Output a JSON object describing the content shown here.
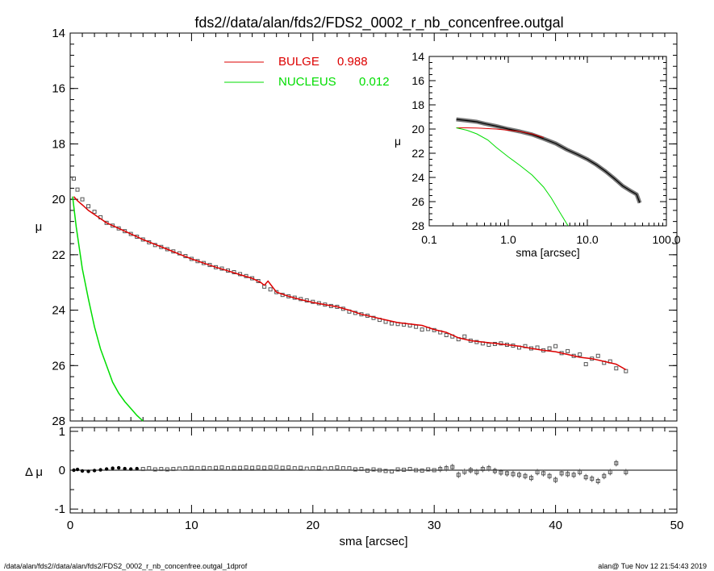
{
  "title": "fds2//data/alan/fds2/FDS2_0002_r_nb_concenfree.outgal",
  "footer_left": "/data/alan/fds2//data/alan/fds2/FDS2_0002_r_nb_concenfree.outgal_1dprof",
  "footer_right": "alan@  Tue Nov 12 21:54:43 2019",
  "colors": {
    "data": "#555555",
    "bulge": "#dd0000",
    "nucleus": "#00dd00",
    "axis": "#000000"
  },
  "chart_data": [
    {
      "type": "scatter",
      "panel": "main",
      "xlabel": "sma [arcsec]",
      "ylabel": "μ",
      "xlim": [
        0,
        50
      ],
      "ylim": [
        28,
        14
      ],
      "x_ticks": [
        "0",
        "10",
        "20",
        "30",
        "40",
        "50"
      ],
      "y_ticks": [
        "14",
        "16",
        "18",
        "20",
        "22",
        "24",
        "26",
        "28"
      ],
      "legend": [
        {
          "label": "BULGE",
          "value": "0.988",
          "color": "#dd0000"
        },
        {
          "label": "NUCLEUS",
          "value": "0.012",
          "color": "#00dd00"
        }
      ],
      "series": [
        {
          "name": "data",
          "style": "squares",
          "x": [
            0.3,
            0.6,
            1.0,
            1.5,
            2.0,
            2.5,
            3.0,
            3.5,
            4.0,
            4.5,
            5.0,
            5.5,
            6.0,
            6.5,
            7.0,
            7.5,
            8.0,
            8.5,
            9.0,
            9.5,
            10.0,
            10.5,
            11.0,
            11.5,
            12.0,
            12.5,
            13.0,
            13.5,
            14.0,
            14.5,
            15.0,
            15.5,
            16.0,
            16.5,
            17.0,
            17.5,
            18.0,
            18.5,
            19.0,
            19.5,
            20.0,
            20.5,
            21.0,
            21.5,
            22.0,
            22.5,
            23.0,
            23.5,
            24.0,
            24.5,
            25.0,
            25.5,
            26.0,
            26.5,
            27.0,
            27.5,
            28.0,
            28.5,
            29.0,
            29.5,
            30.0,
            30.5,
            31.0,
            31.5,
            32.0,
            32.5,
            33.0,
            33.5,
            34.0,
            34.5,
            35.0,
            35.5,
            36.0,
            36.5,
            37.0,
            37.5,
            38.0,
            38.5,
            39.0,
            39.5,
            40.0,
            40.5,
            41.0,
            41.5,
            42.0,
            42.5,
            43.0,
            43.5,
            44.0,
            44.5,
            45.0,
            45.8
          ],
          "y": [
            19.25,
            19.65,
            20.0,
            20.25,
            20.45,
            20.65,
            20.85,
            20.95,
            21.05,
            21.15,
            21.25,
            21.35,
            21.45,
            21.55,
            21.65,
            21.72,
            21.8,
            21.88,
            21.95,
            22.05,
            22.15,
            22.23,
            22.3,
            22.37,
            22.45,
            22.5,
            22.57,
            22.63,
            22.7,
            22.77,
            22.85,
            22.95,
            23.15,
            23.25,
            23.35,
            23.45,
            23.5,
            23.55,
            23.6,
            23.65,
            23.7,
            23.75,
            23.8,
            23.85,
            23.88,
            23.95,
            24.05,
            24.1,
            24.15,
            24.2,
            24.28,
            24.35,
            24.42,
            24.48,
            24.5,
            24.52,
            24.55,
            24.6,
            24.7,
            24.68,
            24.72,
            24.8,
            24.9,
            24.95,
            25.05,
            24.95,
            25.1,
            25.15,
            25.2,
            25.25,
            25.22,
            25.2,
            25.25,
            25.28,
            25.35,
            25.3,
            25.38,
            25.35,
            25.45,
            25.38,
            25.3,
            25.55,
            25.48,
            25.65,
            25.6,
            25.95,
            25.75,
            25.65,
            25.9,
            25.85,
            26.1,
            26.2
          ]
        },
        {
          "name": "BULGE",
          "style": "line",
          "x": [
            0.3,
            0.6,
            1.0,
            1.5,
            2.0,
            3.0,
            4.0,
            5.0,
            6.0,
            7.0,
            8.0,
            9.0,
            10.0,
            11.0,
            12.0,
            13.0,
            14.0,
            15.0,
            15.7,
            16.0,
            16.3,
            17.0,
            18.0,
            19.0,
            20.0,
            21.0,
            22.0,
            23.0,
            24.0,
            25.0,
            26.0,
            27.0,
            28.0,
            29.0,
            30.0,
            31.0,
            32.0,
            33.0,
            34.0,
            35.0,
            36.0,
            37.0,
            38.0,
            39.0,
            40.0,
            41.0,
            42.0,
            43.0,
            44.0,
            45.0,
            45.8
          ],
          "y": [
            19.9,
            20.05,
            20.2,
            20.4,
            20.55,
            20.85,
            21.05,
            21.25,
            21.45,
            21.63,
            21.8,
            21.98,
            22.15,
            22.3,
            22.45,
            22.58,
            22.72,
            22.85,
            23.0,
            23.1,
            22.95,
            23.35,
            23.5,
            23.62,
            23.72,
            23.8,
            23.88,
            24.0,
            24.15,
            24.25,
            24.35,
            24.45,
            24.5,
            24.55,
            24.7,
            24.8,
            25.0,
            25.1,
            25.15,
            25.2,
            25.25,
            25.3,
            25.38,
            25.45,
            25.5,
            25.6,
            25.7,
            25.75,
            25.85,
            25.95,
            26.15
          ]
        },
        {
          "name": "NUCLEUS",
          "style": "line",
          "x": [
            0.2,
            0.5,
            1.0,
            1.5,
            2.0,
            2.5,
            3.0,
            3.5,
            4.0,
            4.5,
            5.0,
            5.5,
            6.0
          ],
          "y": [
            19.9,
            21.0,
            22.5,
            23.6,
            24.6,
            25.4,
            26.0,
            26.6,
            27.0,
            27.3,
            27.55,
            27.8,
            28.0
          ]
        }
      ]
    },
    {
      "type": "scatter",
      "panel": "residual",
      "xlabel": "sma [arcsec]",
      "ylabel": "Δ μ",
      "xlim": [
        0,
        50
      ],
      "ylim": [
        -1.1,
        1.1
      ],
      "y_ticks": [
        "1",
        "0",
        "-1"
      ],
      "series": [
        {
          "name": "residual",
          "x": [
            0.3,
            0.6,
            1.0,
            1.5,
            2.0,
            2.5,
            3.0,
            3.5,
            4.0,
            4.5,
            5.0,
            5.5,
            6.0,
            6.5,
            7.0,
            7.5,
            8.0,
            8.5,
            9.0,
            9.5,
            10.0,
            10.5,
            11.0,
            11.5,
            12.0,
            12.5,
            13.0,
            13.5,
            14.0,
            14.5,
            15.0,
            15.5,
            16.0,
            16.5,
            17.0,
            17.5,
            18.0,
            18.5,
            19.0,
            19.5,
            20.0,
            20.5,
            21.0,
            21.5,
            22.0,
            22.5,
            23.0,
            23.5,
            24.0,
            24.5,
            25.0,
            25.5,
            26.0,
            26.5,
            27.0,
            27.5,
            28.0,
            28.5,
            29.0,
            29.5,
            30.0,
            30.5,
            31.0,
            31.5,
            32.0,
            32.5,
            33.0,
            33.5,
            34.0,
            34.5,
            35.0,
            35.5,
            36.0,
            36.5,
            37.0,
            37.5,
            38.0,
            38.5,
            39.0,
            39.5,
            40.0,
            40.5,
            41.0,
            41.5,
            42.0,
            42.5,
            43.0,
            43.5,
            44.0,
            44.5,
            45.0,
            45.8
          ],
          "y": [
            0.0,
            0.02,
            -0.02,
            -0.03,
            -0.01,
            0.01,
            0.03,
            0.05,
            0.06,
            0.04,
            0.03,
            0.04,
            0.03,
            0.05,
            0.02,
            0.03,
            0.02,
            0.03,
            0.04,
            0.05,
            0.06,
            0.05,
            0.06,
            0.05,
            0.06,
            0.07,
            0.05,
            0.06,
            0.06,
            0.07,
            0.06,
            0.07,
            0.06,
            0.07,
            0.08,
            0.06,
            0.07,
            0.05,
            0.06,
            0.04,
            0.05,
            0.06,
            0.04,
            0.05,
            0.07,
            0.05,
            0.05,
            0.02,
            0.03,
            -0.01,
            0.02,
            0.0,
            -0.02,
            -0.03,
            0.02,
            0.01,
            0.03,
            0.0,
            -0.01,
            0.02,
            0.0,
            0.03,
            0.05,
            0.08,
            -0.12,
            -0.04,
            0.0,
            -0.05,
            0.03,
            0.05,
            -0.02,
            -0.06,
            -0.08,
            -0.1,
            -0.12,
            -0.15,
            -0.2,
            -0.05,
            -0.08,
            -0.15,
            -0.25,
            -0.08,
            -0.1,
            -0.12,
            -0.05,
            -0.18,
            -0.22,
            -0.28,
            -0.15,
            -0.05,
            0.18,
            -0.05
          ]
        }
      ]
    },
    {
      "type": "scatter",
      "panel": "inset",
      "xscale": "log",
      "xlabel": "sma [arcsec]",
      "ylabel": "μ",
      "xlim": [
        0.1,
        100.0
      ],
      "ylim": [
        28,
        14
      ],
      "x_ticks": [
        "0.1",
        "1.0",
        "10.0",
        "100.0"
      ],
      "y_ticks": [
        "14",
        "16",
        "18",
        "20",
        "22",
        "24",
        "26",
        "28"
      ],
      "series": [
        {
          "name": "data",
          "x": [
            0.22,
            0.3,
            0.4,
            0.5,
            0.7,
            1.0,
            1.4,
            2.0,
            2.8,
            4.0,
            5.5,
            7.5,
            10.0,
            13.0,
            17.0,
            22.0,
            28.0,
            35.0,
            42.0,
            46.0
          ],
          "y": [
            19.2,
            19.3,
            19.4,
            19.55,
            19.75,
            20.0,
            20.2,
            20.45,
            20.8,
            21.2,
            21.7,
            22.1,
            22.5,
            22.95,
            23.5,
            24.1,
            24.7,
            25.1,
            25.4,
            26.1
          ]
        },
        {
          "name": "BULGE",
          "x": [
            0.22,
            0.3,
            0.4,
            0.5,
            0.7,
            1.0,
            1.4,
            2.0,
            2.8
          ],
          "y": [
            19.9,
            19.9,
            19.92,
            19.95,
            20.0,
            20.1,
            20.2,
            20.4,
            20.7
          ]
        },
        {
          "name": "NUCLEUS",
          "x": [
            0.22,
            0.3,
            0.4,
            0.55,
            0.7,
            1.0,
            1.4,
            2.0,
            2.8,
            3.5,
            4.5,
            5.7
          ],
          "y": [
            19.9,
            20.1,
            20.4,
            20.9,
            21.5,
            22.3,
            23.0,
            23.8,
            24.8,
            25.7,
            26.9,
            28.0
          ]
        }
      ]
    }
  ]
}
